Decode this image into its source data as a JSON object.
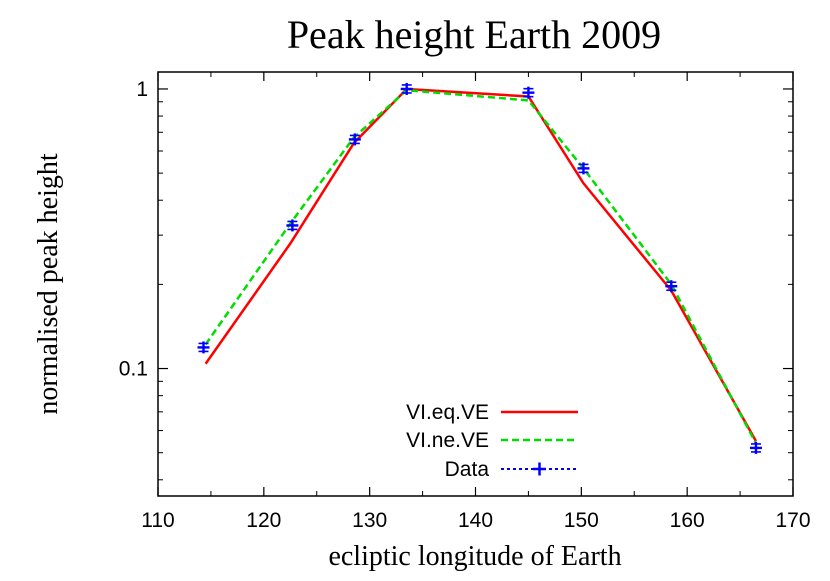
{
  "chart_data": {
    "type": "line",
    "title": "Peak height Earth 2009",
    "xlabel": "ecliptic longitude of Earth",
    "ylabel": "normalised peak height",
    "xlim": [
      110,
      170
    ],
    "ylim": [
      0.035,
      1.15
    ],
    "yscale": "log",
    "x_ticks": [
      110,
      120,
      130,
      140,
      150,
      160,
      170
    ],
    "y_ticks": [
      {
        "value": 0.1,
        "label": "0.1"
      },
      {
        "value": 1,
        "label": "1"
      }
    ],
    "legend_position": "bottom-center",
    "series": [
      {
        "name": "VI.eq.VE",
        "color": "#ff0000",
        "style": "solid",
        "x": [
          114.5,
          122.5,
          128.5,
          133.5,
          145.0,
          150.2,
          158.5,
          166.5
        ],
        "y": [
          0.104,
          0.28,
          0.64,
          1.0,
          0.94,
          0.46,
          0.19,
          0.055
        ]
      },
      {
        "name": "VI.ne.VE",
        "color": "#00dd00",
        "style": "dashed",
        "x": [
          114.5,
          122.5,
          128.5,
          133.5,
          145.0,
          150.2,
          158.5,
          166.5
        ],
        "y": [
          0.122,
          0.33,
          0.67,
          0.99,
          0.91,
          0.52,
          0.2,
          0.054
        ]
      },
      {
        "name": "Data",
        "color": "#0000ff",
        "style": "points",
        "x": [
          114.3,
          122.7,
          128.6,
          133.5,
          145.0,
          150.2,
          158.5,
          166.5
        ],
        "y": [
          0.119,
          0.325,
          0.66,
          1.0,
          0.97,
          0.52,
          0.197,
          0.052
        ]
      }
    ]
  }
}
